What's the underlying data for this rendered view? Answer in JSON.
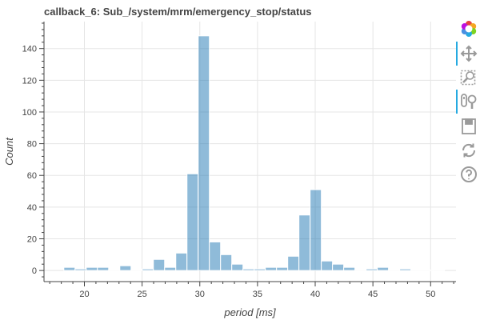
{
  "chart_data": {
    "type": "bar",
    "title": "callback_6: Sub_/system/mrm/emergency_stop/status",
    "xlabel": "period [ms]",
    "ylabel": "Count",
    "xlim": [
      16.5,
      52.2
    ],
    "ylim": [
      -7,
      157
    ],
    "x_ticks": [
      20,
      25,
      30,
      35,
      40,
      45,
      50
    ],
    "y_ticks": [
      0,
      20,
      40,
      60,
      80,
      100,
      120,
      140
    ],
    "bin_width": 0.97,
    "bin_edges": [
      18.22,
      19.19,
      20.16,
      21.13,
      22.1,
      23.07,
      24.04,
      25.01,
      25.98,
      26.95,
      27.92,
      28.89,
      29.86,
      30.83,
      31.8,
      32.77,
      33.74,
      34.71,
      35.68,
      36.65,
      37.62,
      38.59,
      39.56,
      40.53,
      41.5,
      42.47,
      43.44,
      44.41,
      45.38,
      46.35,
      47.32,
      48.29,
      49.26,
      50.23,
      51.2
    ],
    "counts": [
      2,
      1,
      2,
      2,
      0,
      3,
      0,
      1,
      7,
      2,
      11,
      61,
      148,
      18,
      10,
      4,
      1,
      1,
      2,
      2,
      9,
      35,
      51,
      6,
      4,
      2,
      0,
      1,
      2,
      0,
      1,
      0,
      0,
      0
    ],
    "bar_color": "#1f77b4",
    "bar_alpha": 0.5,
    "grid": true
  },
  "toolbar": {
    "tools": [
      {
        "name": "bokeh-logo",
        "active": false
      },
      {
        "name": "pan-tool",
        "active": true
      },
      {
        "name": "box-zoom-tool",
        "active": false
      },
      {
        "name": "wheel-zoom-tool",
        "active": true
      },
      {
        "name": "save-tool",
        "active": false
      },
      {
        "name": "reset-tool",
        "active": false
      },
      {
        "name": "help-tool",
        "active": false
      }
    ]
  },
  "colors": {
    "accent": "#26aae1",
    "grid": "#e5e5e5",
    "axis": "#444444",
    "icon": "#9a9a9a"
  }
}
